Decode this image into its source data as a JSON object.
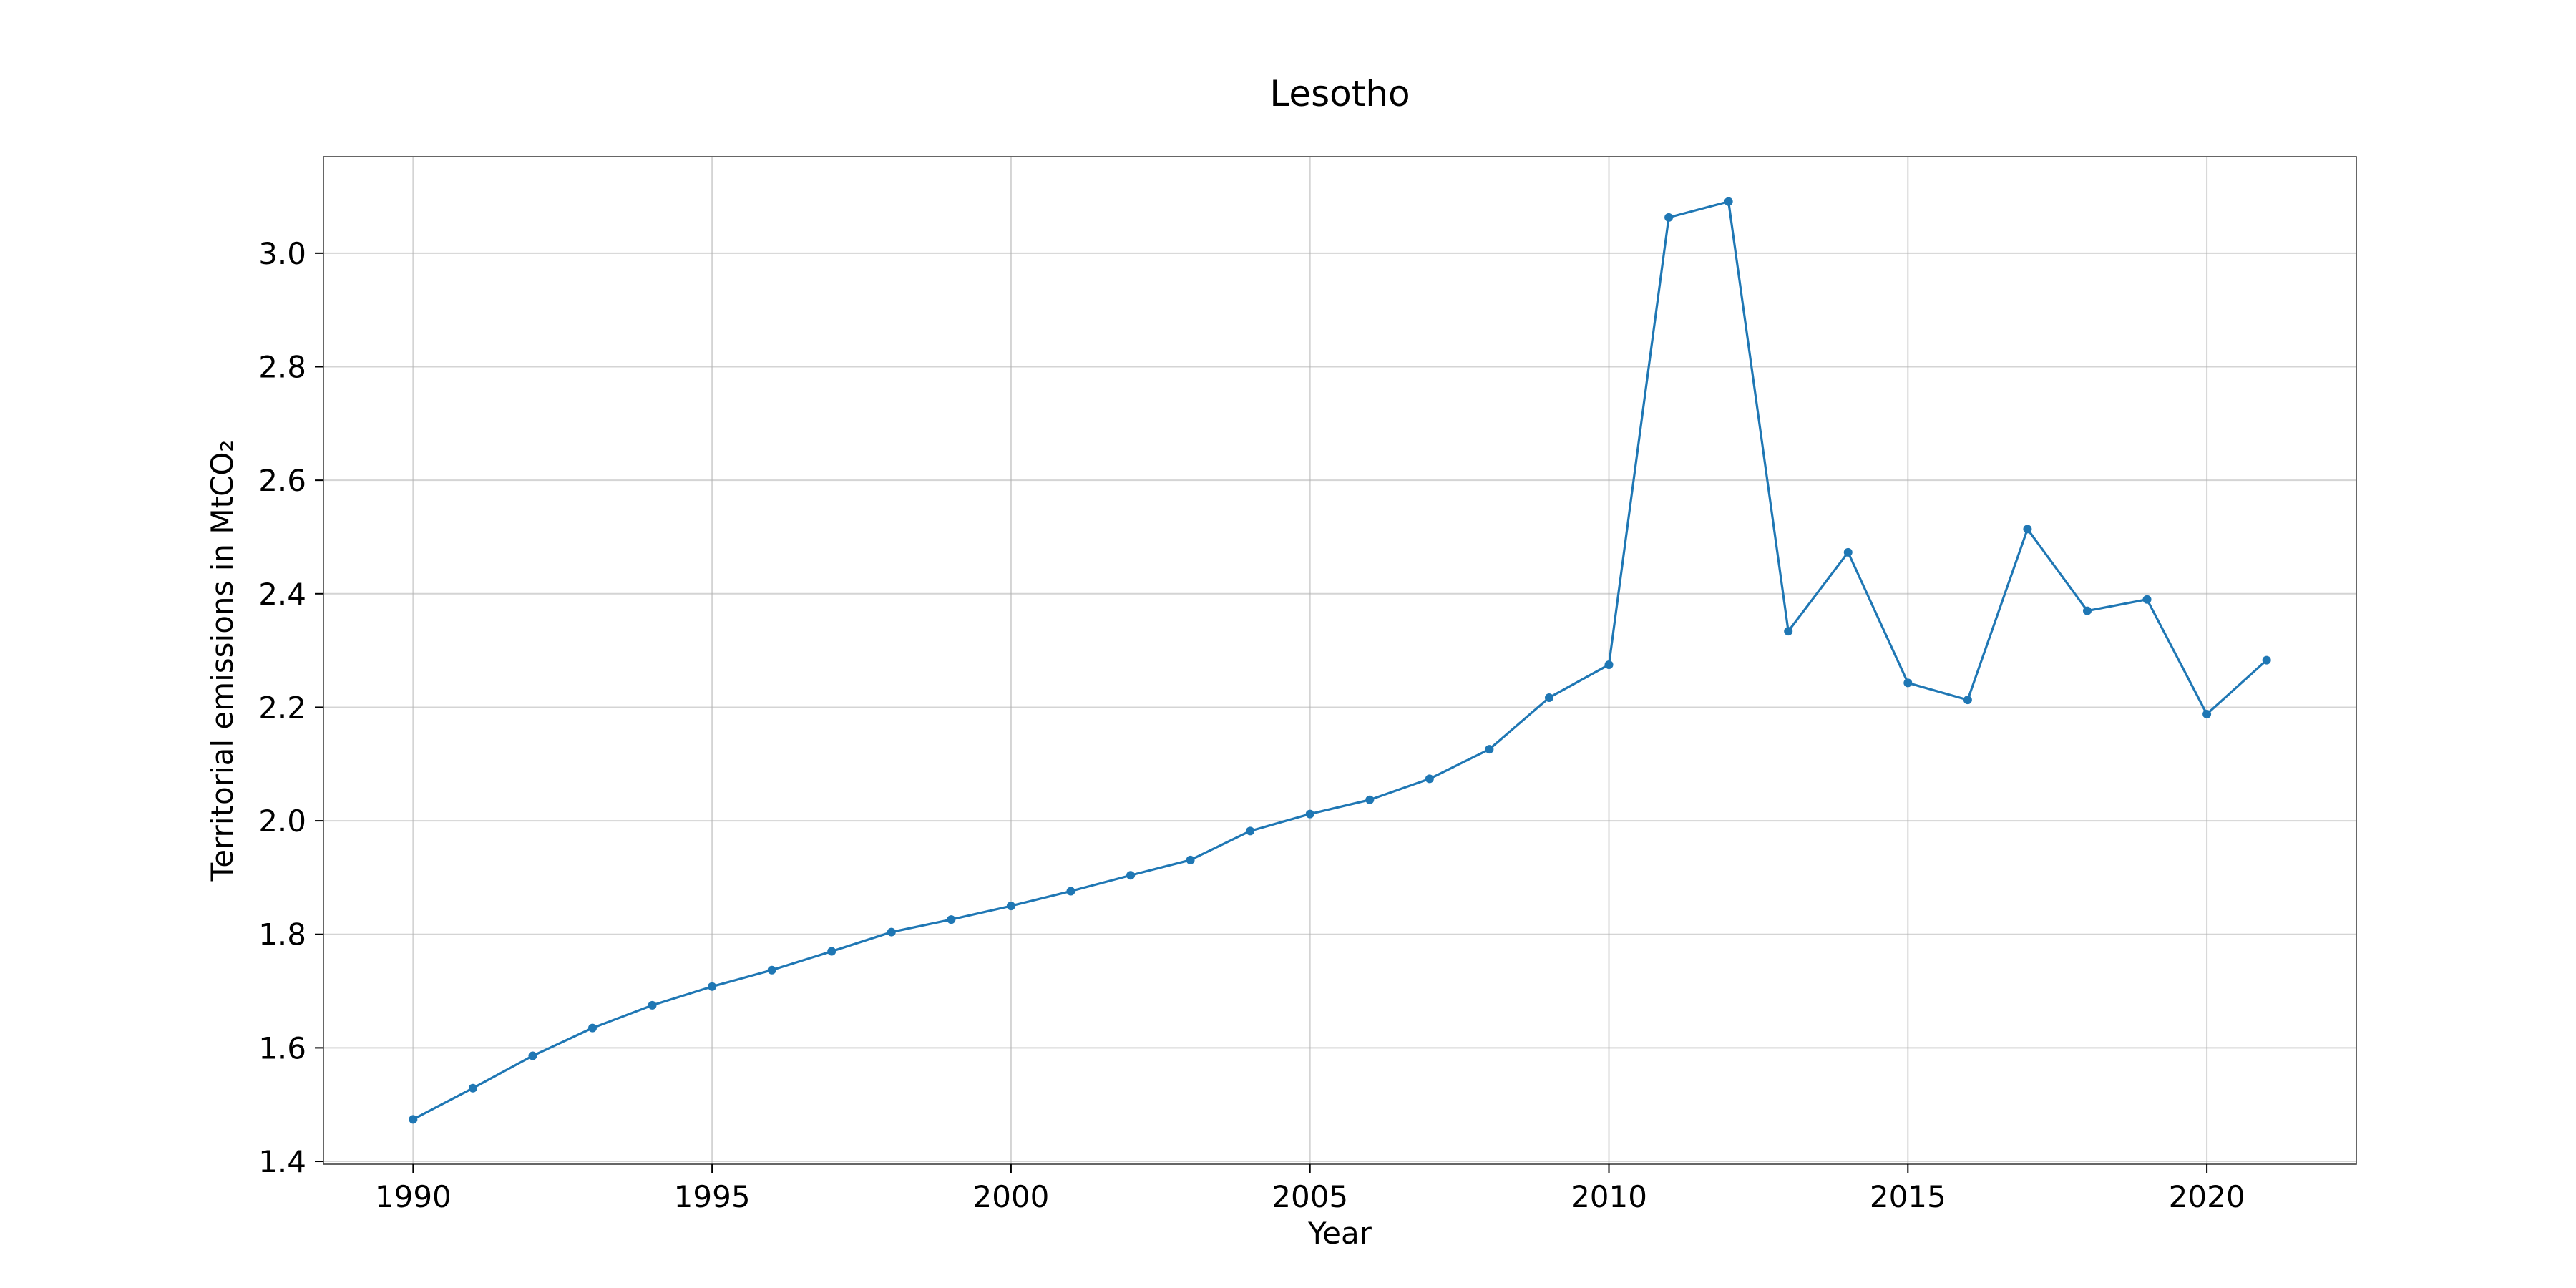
{
  "chart_data": {
    "type": "line",
    "title": "Lesotho",
    "xlabel": "Year",
    "ylabel": "Territorial emissions in MtCO₂",
    "xlim": [
      1988.5,
      2022.5
    ],
    "ylim": [
      1.395,
      3.17
    ],
    "x_ticks": [
      1990,
      1995,
      2000,
      2005,
      2010,
      2015,
      2020
    ],
    "x_tick_labels": [
      "1990",
      "1995",
      "2000",
      "2005",
      "2010",
      "2015",
      "2020"
    ],
    "y_ticks": [
      1.4,
      1.6,
      1.8,
      2.0,
      2.2,
      2.4,
      2.6,
      2.8,
      3.0
    ],
    "y_tick_labels": [
      "1.4",
      "1.6",
      "1.8",
      "2.0",
      "2.2",
      "2.4",
      "2.6",
      "2.8",
      "3.0"
    ],
    "grid": true,
    "line_color": "#1f77b4",
    "series": [
      {
        "name": "Lesotho",
        "x": [
          1990,
          1991,
          1992,
          1993,
          1994,
          1995,
          1996,
          1997,
          1998,
          1999,
          2000,
          2001,
          2002,
          2003,
          2004,
          2005,
          2006,
          2007,
          2008,
          2009,
          2010,
          2011,
          2012,
          2013,
          2014,
          2015,
          2016,
          2017,
          2018,
          2019,
          2020,
          2021
        ],
        "values": [
          1.474,
          1.529,
          1.586,
          1.635,
          1.675,
          1.708,
          1.737,
          1.77,
          1.804,
          1.826,
          1.85,
          1.876,
          1.904,
          1.931,
          1.982,
          2.012,
          2.037,
          2.074,
          2.126,
          2.217,
          2.275,
          3.063,
          3.091,
          2.334,
          2.473,
          2.243,
          2.213,
          2.514,
          2.37,
          2.39,
          2.188,
          2.283
        ]
      }
    ]
  }
}
